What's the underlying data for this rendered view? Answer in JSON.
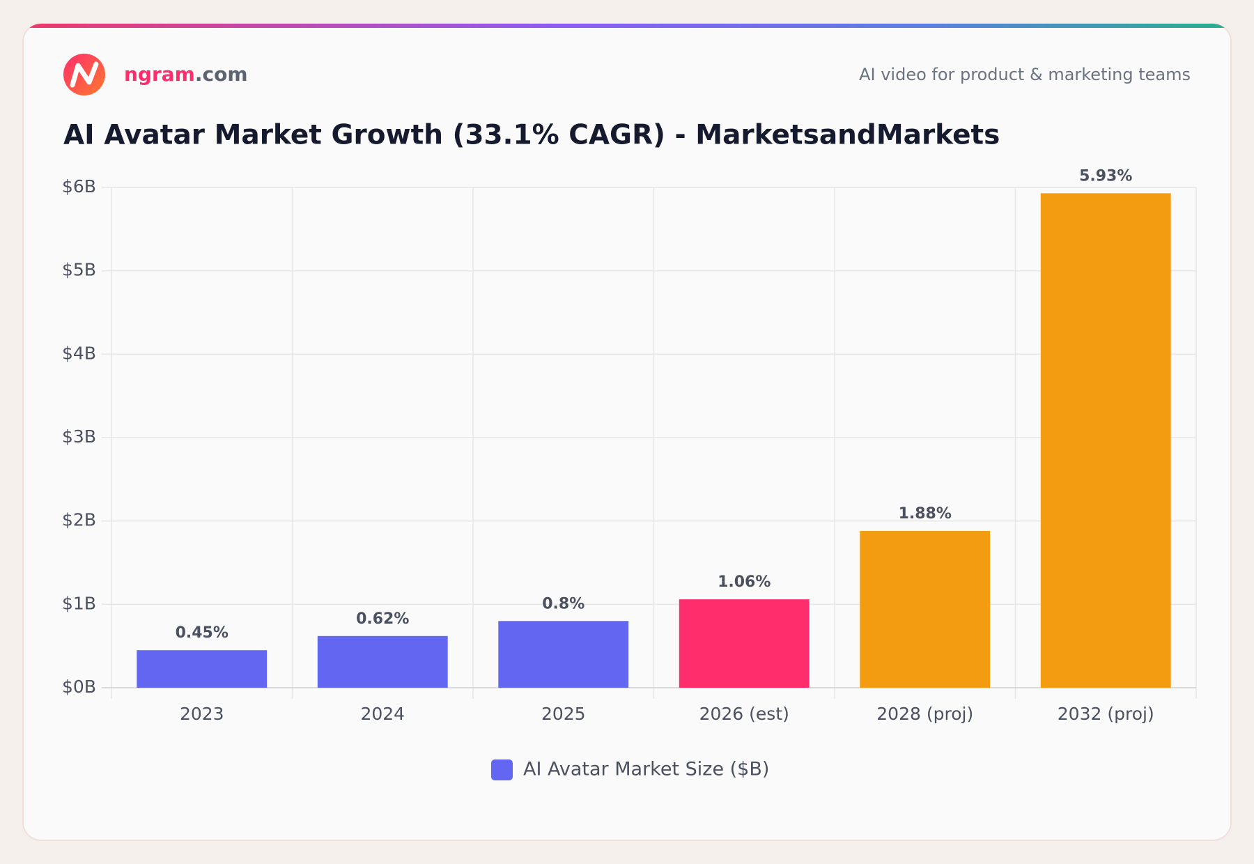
{
  "header": {
    "brand": "ngram",
    "brand_suffix": ".com",
    "tagline": "AI video for product & marketing teams"
  },
  "chart_data": {
    "type": "bar",
    "title": "AI Avatar Market Growth (33.1% CAGR) - MarketsandMarkets",
    "categories": [
      "2023",
      "2024",
      "2025",
      "2026 (est)",
      "2028 (proj)",
      "2032 (proj)"
    ],
    "series": [
      {
        "name": "AI Avatar Market Size ($B)",
        "color": "#6366f1",
        "values": [
          0.45,
          0.62,
          0.8,
          1.06,
          1.88,
          5.93
        ],
        "value_labels": [
          "0.45%",
          "0.62%",
          "0.8%",
          "1.06%",
          "1.88%",
          "5.93%"
        ]
      }
    ],
    "bar_colors": [
      "#6366f1",
      "#6366f1",
      "#6366f1",
      "#ff2d6c",
      "#f39c12",
      "#f39c12"
    ],
    "ylim": [
      0,
      6
    ],
    "yticks": [
      {
        "value": 0,
        "label": "$0B"
      },
      {
        "value": 1,
        "label": "$1B"
      },
      {
        "value": 2,
        "label": "$2B"
      },
      {
        "value": 3,
        "label": "$3B"
      },
      {
        "value": 4,
        "label": "$4B"
      },
      {
        "value": 5,
        "label": "$5B"
      },
      {
        "value": 6,
        "label": "$6B"
      }
    ],
    "grid": true
  }
}
